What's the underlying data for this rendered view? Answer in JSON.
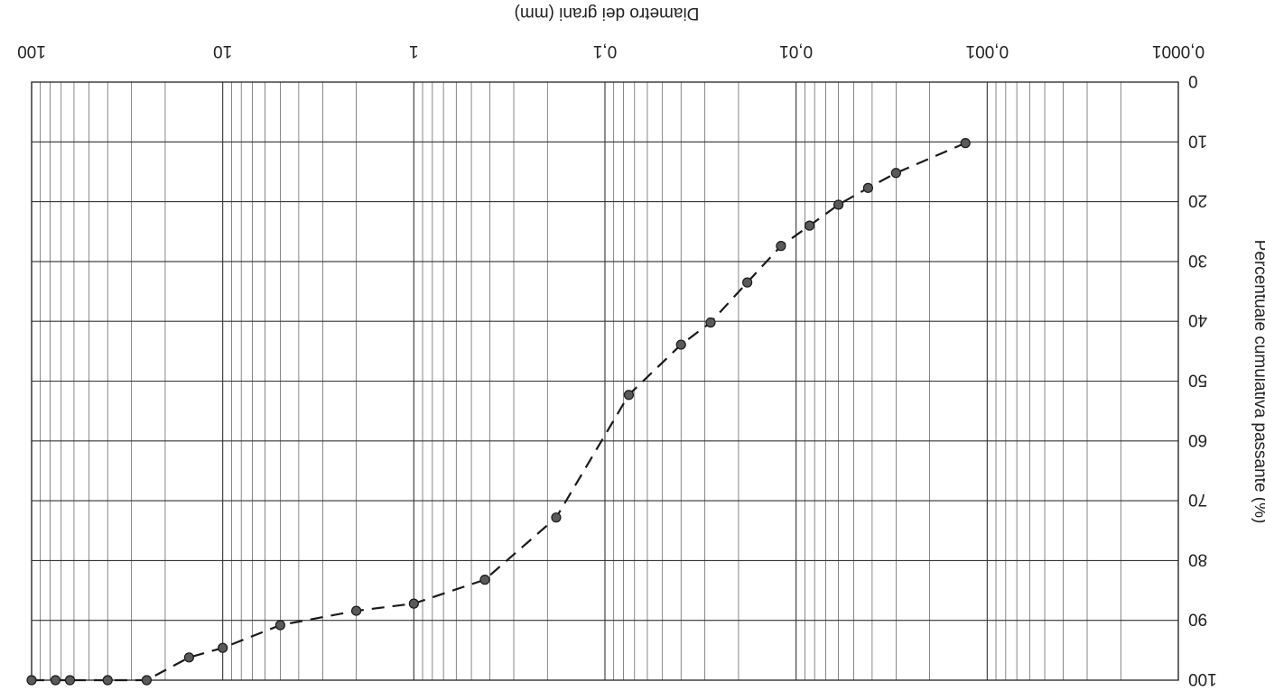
{
  "chart_data": {
    "type": "line",
    "orientation": "rotated 180 degrees (image is upside down)",
    "xlabel": "Diametro dei grani (mm)",
    "ylabel": "Percentuale cumulativa passante (%)",
    "x_scale": "log",
    "x_range": [
      100,
      0.0001
    ],
    "y_range": [
      0,
      100
    ],
    "x_major_ticks": [
      {
        "value": 100,
        "label": "100"
      },
      {
        "value": 10,
        "label": "10"
      },
      {
        "value": 1,
        "label": "1"
      },
      {
        "value": 0.1,
        "label": "0,1"
      },
      {
        "value": 0.01,
        "label": "0,01"
      },
      {
        "value": 0.001,
        "label": "0,001"
      },
      {
        "value": 0.0001,
        "label": "0,0001"
      }
    ],
    "y_ticks": [
      {
        "value": 0,
        "label": "0"
      },
      {
        "value": 10,
        "label": "10"
      },
      {
        "value": 20,
        "label": "20"
      },
      {
        "value": 30,
        "label": "30"
      },
      {
        "value": 40,
        "label": "40"
      },
      {
        "value": 50,
        "label": "50"
      },
      {
        "value": 60,
        "label": "60"
      },
      {
        "value": 70,
        "label": "70"
      },
      {
        "value": 80,
        "label": "80"
      },
      {
        "value": 90,
        "label": "90"
      },
      {
        "value": 100,
        "label": "100"
      }
    ],
    "grid": true,
    "line_style": "dashed with circle markers",
    "series": [
      {
        "points": [
          {
            "x": 100,
            "y": 100
          },
          {
            "x": 75,
            "y": 100
          },
          {
            "x": 63,
            "y": 100
          },
          {
            "x": 40,
            "y": 100
          },
          {
            "x": 25,
            "y": 100
          },
          {
            "x": 15,
            "y": 96.2
          },
          {
            "x": 10,
            "y": 94.6
          },
          {
            "x": 5,
            "y": 90.8
          },
          {
            "x": 2,
            "y": 88.4
          },
          {
            "x": 1,
            "y": 87.2
          },
          {
            "x": 0.425,
            "y": 83.2
          },
          {
            "x": 0.18,
            "y": 72.8
          },
          {
            "x": 0.075,
            "y": 52.3
          },
          {
            "x": 0.04,
            "y": 43.9
          },
          {
            "x": 0.028,
            "y": 40.2
          },
          {
            "x": 0.018,
            "y": 33.5
          },
          {
            "x": 0.012,
            "y": 27.4
          },
          {
            "x": 0.0085,
            "y": 24.0
          },
          {
            "x": 0.006,
            "y": 20.5
          },
          {
            "x": 0.0042,
            "y": 17.7
          },
          {
            "x": 0.003,
            "y": 15.2
          },
          {
            "x": 0.0013,
            "y": 10.2
          }
        ]
      }
    ]
  }
}
